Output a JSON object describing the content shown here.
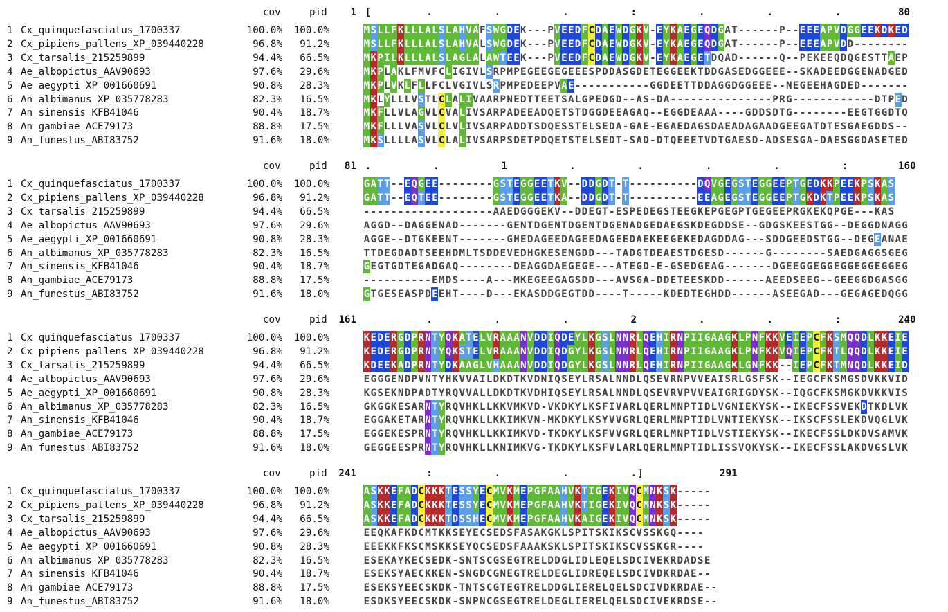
{
  "headers": {
    "cov": "cov",
    "pid": "pid"
  },
  "sequences": [
    {
      "idx": "1",
      "name": "Cx_quinquefasciatus_1700337",
      "cov": "100.0%",
      "pid": "100.0%"
    },
    {
      "idx": "2",
      "name": "Cx_pipiens_pallens_XP_039440228",
      "cov": "96.8%",
      "pid": "91.2%"
    },
    {
      "idx": "3",
      "name": "Cx_tarsalis_215259899",
      "cov": "94.4%",
      "pid": "66.5%"
    },
    {
      "idx": "4",
      "name": "Ae_albopictus_AAV90693",
      "cov": "97.6%",
      "pid": "29.6%"
    },
    {
      "idx": "5",
      "name": "Ae_aegypti_XP_001660691",
      "cov": "90.8%",
      "pid": "28.3%"
    },
    {
      "idx": "6",
      "name": "An_albimanus_XP_035778283",
      "cov": "82.3%",
      "pid": "16.5%"
    },
    {
      "idx": "7",
      "name": "An_sinensis_KFB41046",
      "cov": "90.4%",
      "pid": "18.7%"
    },
    {
      "idx": "8",
      "name": "An_gambiae_ACE79173",
      "cov": "88.8%",
      "pid": "17.5%"
    },
    {
      "idx": "9",
      "name": "An_funestus_ABI83752",
      "cov": "91.6%",
      "pid": "18.0%"
    }
  ],
  "blocks": [
    {
      "start": "1",
      "end": "80",
      "ruler": "[        .         .         .         :         .         .         .         .",
      "rows": [
        "MSLLFKLLLALSLAHVAFSWGDEK---PVEEDFCDAEWDGKV-EYKAEGEQDGAT------P--EEEAPVDGGEEKDKED",
        "MSLLFKLLLALSLAHVALSWGDEK---PVEEDFCDAEWDGKV-EYKAEGEQDGAT------P--EEEAPVDD--------",
        "MKPILKLLLALSLAGLALAWTEEK---PVEEDFCDAEWDGKV-EYKAEGETDQAD------Q--PEKEEQDQGESTTAEP",
        "MKPLAKLFMVFCLIGIVLSRPMPEGEEGEGEEESPDDASGDETEGGEEKTDDGASEDGGEEE--SKADEEDGGENADGED",
        "MKPLVKLFLLFCLVGIVLSRPMPEDEEPVAE-----------GGDEETTDDAGGDGGEEE--NEGEEHAGDED-------",
        "MKLYLLLVSTLCLALIVAARPNEDTTEETSALGPEDGD--AS-DA---------------PRG------------DTPED",
        "MKFLLVLAGVLCVALIVSARPADEEADQETSTDGGDEEAGAQ--EGGDEAAA----GDDSDTG--------EEGTGGDTQD",
        "MKFLLLVASVLCLVLIVSARPADDTSDQESSTELSEDA-GAE-EGAEDAGSDAEADAGAADGEEGATDTESGAEGDDS--",
        "MKSLLLLASVLCLALIVSARPSDETPDQETSTELSEDT-SAD-DTQEEETVDTGAESD-ADSESGA-DAESGGDASETED"
      ],
      "colors": [
        "GGGGGGGGGGGGGGGGG.GGGGG.....GGGGRGGGGGGGRG.GGGRGGGGGG.......G...GGGGGGGGGGGGGGGG",
        "GGGGGGGGGGGGGGGGG.GGGGG.....GGGGRGGGGGGGRG.GGGRGGGGGG.......G...GGGGGGG.........",
        "GGGGGGGGGGGGGGGGG.GGGGG.....GGGGRGGGGGGGRG.GGGRGGGG..........................G..",
        "GGG.G.......G.....L.............................................................",
        "GGG.G.G.G..........L.........GG...............................................",
        "GG.G....G..GG.GG..............................................................L",
        "GGG.....G..G..G...............................................................",
        "GGG.....G..G..G...............................................................",
        "GGG.....G..G..G..............................................................."
      ]
    },
    {
      "start": "81",
      "end": "160",
      "ruler": ".         .         1         .         .         .         .         :         .",
      "rows": [
        "GATT--EQGEE--------GSTEGGEETKV--DDGDT-T----------DQVGEGSTEGGEEPTGEDKKPEEKPSKAS",
        "GATT--EQTEE--------GSTEGGEETKA--DDGDT-T----------EEAGEGSTEGGEEPTGKDKTPEEKPSKAS",
        "-------------------AAEDGGGEKV--DDEGT-ESPEDEGSTEEGKEPGEGPTGEGEEPRGKEKQPGE---KAS",
        "AGGD--DAGGENAD-------GENTDGENTDGENTDGENADGEDAEGSKDEGDDSE--GDGSKEESTGG--DEGGDNAGGG",
        "AGGE--DTGKEENT-------GHEDAGEEDAGEEDAGEEDAEKEEGEKEDAGDDAG---SDDGEEDSTGG--DEGEANAEDS",
        "TTDEGDADTSEEHDMLTSDDEVEDHGKESENGDD---TADGTDEAESTDGESD------G--------SAEDGAGGSGEG",
        "GEGTGDTEGADGAQ--------DEAGGDAEGEGE---ATEGD-E-GSEDGEAG-------DGEEGGEGGEGGEGGEGGEGG",
        "----------EMDS----A---MKEGEEGAGSDD---AVSGA-DDETEESKDD------AEEDSEEG--GEEGGDGASGG",
        "GTGESEASPDEEHT----D---EKASDDGEGTDD----T-----KDEDTEGHDD------ASEEGAD---GEGAGEDQGGG"
      ],
      "colors": [
        "GGGG..GGGGG........GGGGGGGGGGG..GGGGG.L..........GGGGGGGGGGGGGGGGGGGGGGGGGGGGG",
        "GGGG..GGGGG........GGGGGGGGGGG..GGGGG.L..........GGGGGGGGGGGGGGGGGGGGGGGGGGGGG",
        "..........................................................................L",
        "...........................................................................",
        "...........................................................................L",
        "...........................................................................",
        "G..............................................................................",
        "...........................................................................",
        "G.........B..................................................................."
      ]
    },
    {
      "start": "161",
      "end": "240",
      "ruler": "         .         .         .         2         .         .         :         .",
      "rows": [
        "KEDERGDPRNTYQKATELVRAAANVDDIQDEYLKGSLNNRLQEHIRNPIIGAAGKLPNFKKVEIEPCFKSMQQDLKKEIE",
        "KEDERGDPRNTYQKSTELVRAAANVDDIQDGYLKGSLNNRLQEHIRNPIIGAAGKLPNFKKVQIEPCFKTLQQDLKKEIE",
        "KDEEKADPRNTYDKAAGLVHAAANVDDIQDGYLKGSLNNRLQEHIRNPIIGAAGKLGNFKK--IEPCFKTMNQDLKKEID",
        "EGGGENDPVNTYHKVVAILDKDTKVDNIQSEYLRSALNNDLQSEVRNPVVEAISRLGSFSK--IEGCFKSMGSDVKKVID",
        "KGSEKNDPADTYRQVVALLDKDTKVDHIQSEYLRSALNNDLQSEVRVPVVEAIGRIGDYSK--IQGCFKSMGKDVKKVIS",
        "GKGGKESARNTYRQVHKLLKKVMKVD-VKDKYLKSFIVARLQERLMNPTIDLVGNIEKYSK--IKECFSSVEKDTKDLVK",
        "EGGAKETARNTYRQVHKLLKKIMKVN-MKDKYLKSYVVGRLQERLMNPTIDLVNTIEKYSK--IKSCFSSLEKDVQGLVK",
        "EGGEKESPRNTYRQVHKLLKKIMKVD-TKDKYLKSFVVGRLQERLMNPTIDLVSTIEKYSK--IKECFSSLDKDVSAMVK",
        "GEGGEESPRNTYRQVHKLLKNIMKVG-TKDKYLKSFVLARLQERLMNPTIDLISSVQKYSK--IKECFSSLAKDVGSLVK"
      ],
      "colors": [
        "RRRRRRRRRRRRRRRRRRRRRRRRRRRRRRRRRRRRRRRRRRRRRRRRRRRRRRRRRRRRRRRRRRRRRRRRRRRRRRRR",
        "RRRRRRRRRRRRRRRRRRRRRRRRRRRRRRRRRRRRRRRRRRRRRRRRRRRRRRRRRRRRRRRRRRRRRRRRRRRRRRRR",
        "RRRRRRRRRRRRRRRRRRRRRRRRRRRRRRRRRRRRRRRRRRRRRRRRRRRRRRRRRRRRR..RRRRRRRRRRRRRRRRR",
        "...............................................................................",
        "...............................................................................",
        ".........RRR.............................................................G.....",
        ".........RRR...................................................................",
        ".........RRR...................................................................",
        ".........RRR..................................................................."
      ]
    },
    {
      "start": "241",
      "end": "291",
      "ruler": "         :         .         .         .]",
      "rows": [
        "ASKKEFADCKKKTESSYECMVKMEPGFAAHVKTIGEKIVQCMNKSK-----",
        "ASKKEFADCKKKTESSYECMVKMEPGFAAHVKTIGEKIVQCMNKSK-----",
        "ASKKEFADCKKKTDSSHECMVKMEPGFAAHVKAIGEKIVQCMNKSK-----",
        "EEQKAFKDCMTKKSEYECSEDSFASAKGKLSPITSKIKSCVSSKGQ----",
        "EEEKKFKSCMSKKSEYQCSEDSFAAAKSKLSPITSKIKSCVSSKGR----",
        "ESEKAYKECSEDK-SNTSCGSEGTRELDDGLIDLEQELSDCIVEKRDADSE",
        "ESEKSYAECKKEN-SNGDCGNEGTRELDEGLIDREQELSDCIVDKRDAE--",
        "ESEKSYEECSKDK-TNTSCGTEGTRELDDGLIERELQELSDCIVDKRDAE--",
        "ESDKSYEECSKDK-SNPNCGSEGTRELDEGLIERELQELSDCIVEKRDSE--"
      ],
      "colors": [
        "GGGGGGGGGGGGGGGGGGGGGGGGGGGGGGGGGGGGGGGGGGGGGGG....",
        "GGGGGGGGGGGGGGGGGGGGGGGGGGGGGGGGGGGGGGGGGGGGGGG....",
        "GGGGGGGGGGGGGGGGGGGGGGGGGGGGGGGGGGGGGGGGGGGGGGG....",
        "..................................................",
        "..................................................",
        "..................................................",
        "..................................................",
        "..................................................",
        ".................................................."
      ]
    }
  ]
}
